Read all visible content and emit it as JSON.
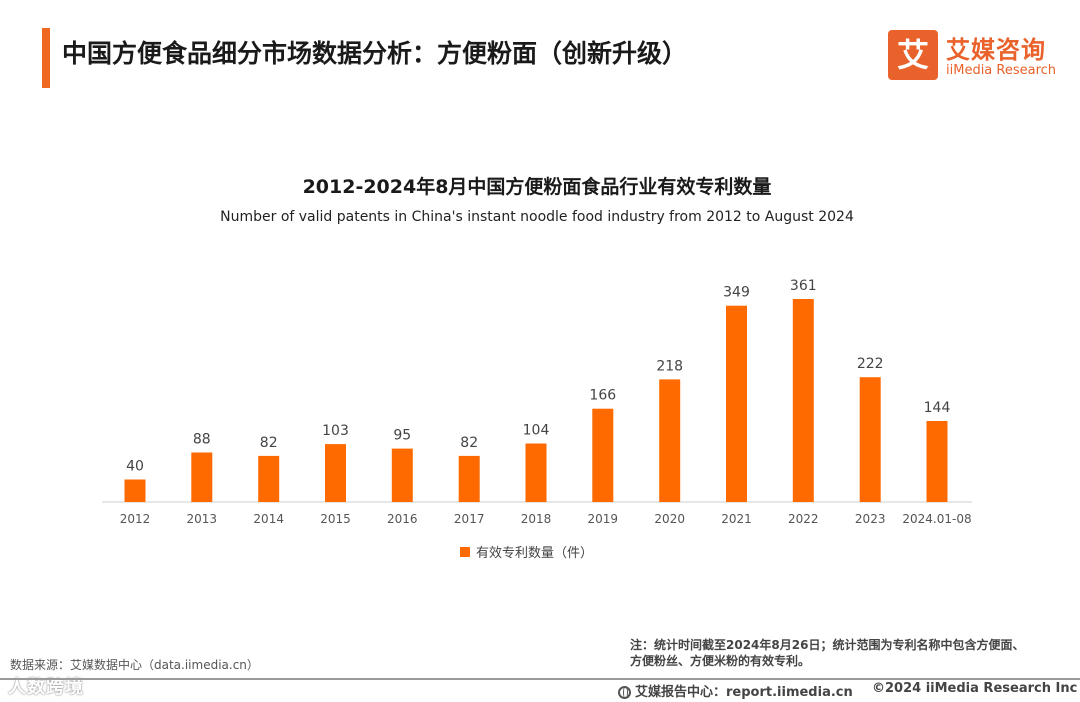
{
  "header": {
    "title": "中国方便食品细分市场数据分析：方便粉面（创新升级）"
  },
  "brand": {
    "mark": "艾",
    "name_cn": "艾媒咨询",
    "name_en": "iiMedia Research",
    "color": "#e9622b"
  },
  "chart_data": {
    "type": "bar",
    "title": "2012-2024年8月中国方便粉面食品行业有效专利数量",
    "subtitle": "Number of valid patents in China's instant noodle food industry from 2012 to August 2024",
    "categories": [
      "2012",
      "2013",
      "2014",
      "2015",
      "2016",
      "2017",
      "2018",
      "2019",
      "2020",
      "2021",
      "2022",
      "2023",
      "2024.01-08"
    ],
    "series": [
      {
        "name": "有效专利数量（件）",
        "values": [
          40,
          88,
          82,
          103,
          95,
          82,
          104,
          166,
          218,
          349,
          361,
          222,
          144
        ],
        "color": "#ff6a00"
      }
    ],
    "xlabel": "",
    "ylabel": "",
    "ylim": [
      0,
      400
    ],
    "grid": false,
    "legend_position": "bottom-center"
  },
  "footer": {
    "source": "数据来源：艾媒数据中心（data.iimedia.cn）",
    "watermark": "人数跨境",
    "note_line1": "注：统计时间截至2024年8月26日；统计范围为专利名称中包含方便面、",
    "note_line2": "方便粉丝、方便米粉的有效专利。",
    "report_center": "艾媒报告中心：report.iimedia.cn",
    "copyright": "©2024  iiMedia Research Inc"
  }
}
